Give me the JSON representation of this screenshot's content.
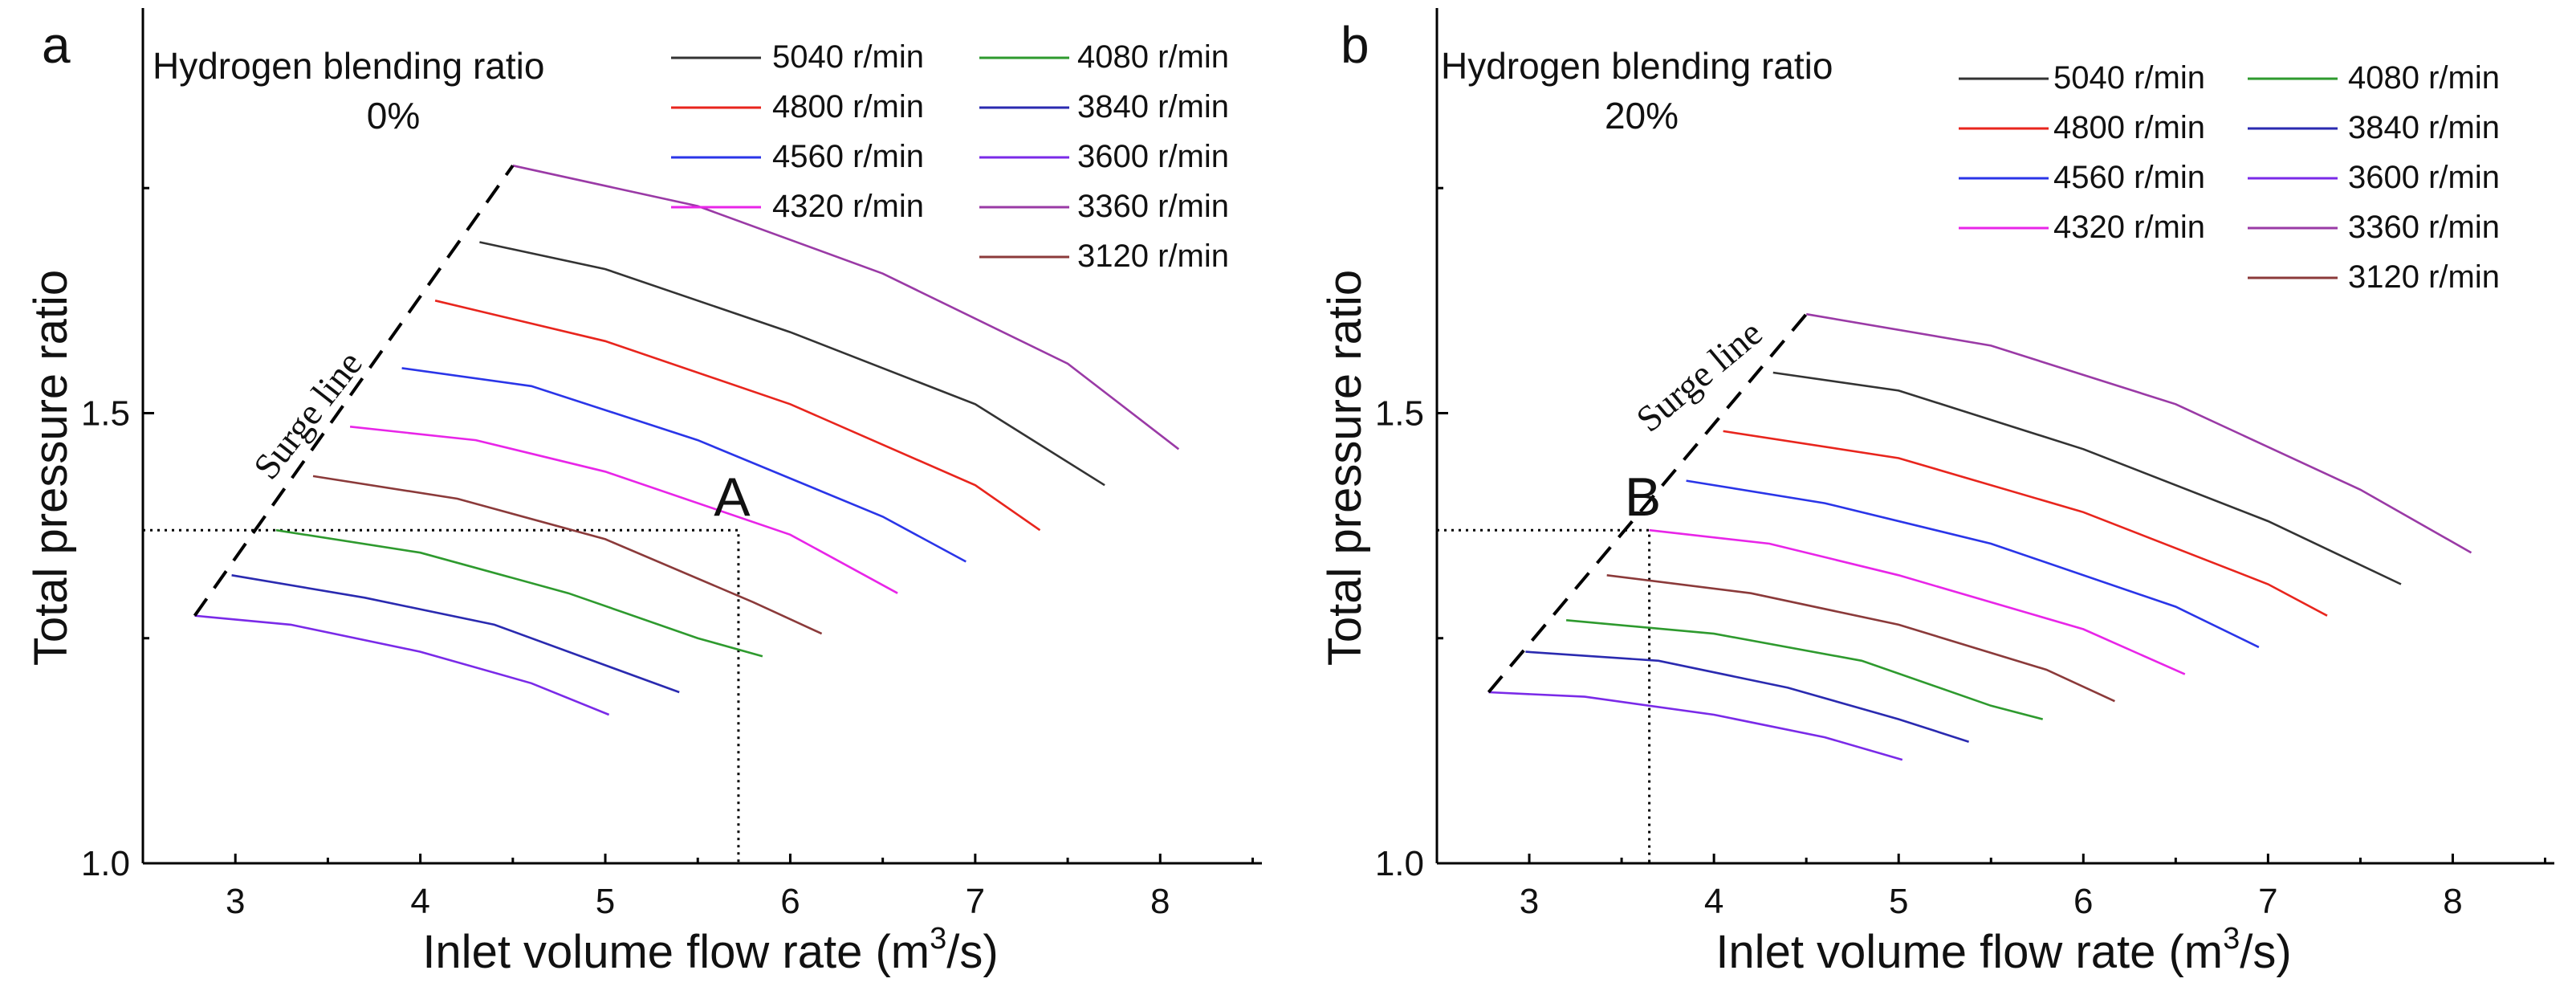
{
  "chart_data": [
    {
      "type": "line",
      "panel_label": "a",
      "title": "Hydrogen blending ratio",
      "subtitle": "0%",
      "xlabel": "Inlet volume flow rate (m",
      "xlabel_sup": "3",
      "xlabel_end": "/s)",
      "ylabel": "Total pressure ratio",
      "xlim": [
        2.5,
        8.55
      ],
      "ylim": [
        1.0,
        1.95
      ],
      "xticks": [
        "3",
        "4",
        "5",
        "6",
        "7",
        "8"
      ],
      "yticks": [
        "1.0",
        "1.5"
      ],
      "surge_label": "Surge line",
      "surge_line": {
        "x": [
          2.78,
          4.5
        ],
        "y": [
          1.275,
          1.775
        ]
      },
      "operating_point": {
        "label": "A",
        "x": 5.72,
        "y": 1.37
      },
      "series": [
        {
          "name": "5040 r/min",
          "color": "#333333",
          "x": [
            4.32,
            5.0,
            6.0,
            7.0,
            7.7
          ],
          "y": [
            1.69,
            1.66,
            1.59,
            1.51,
            1.42
          ]
        },
        {
          "name": "4800 r/min",
          "color": "#e8251d",
          "x": [
            4.08,
            5.0,
            6.0,
            7.0,
            7.35
          ],
          "y": [
            1.625,
            1.58,
            1.51,
            1.42,
            1.37
          ]
        },
        {
          "name": "4560 r/min",
          "color": "#2a35e8",
          "x": [
            3.9,
            4.6,
            5.5,
            6.5,
            6.95
          ],
          "y": [
            1.55,
            1.53,
            1.47,
            1.385,
            1.335
          ]
        },
        {
          "name": "4320 r/min",
          "color": "#e825e8",
          "x": [
            3.62,
            4.3,
            5.0,
            6.0,
            6.58
          ],
          "y": [
            1.485,
            1.47,
            1.435,
            1.365,
            1.3
          ]
        },
        {
          "name": "3360 r/min",
          "color": "#9a3aa6",
          "x": [
            4.5,
            5.5,
            6.5,
            7.5,
            8.1
          ],
          "y": [
            1.775,
            1.73,
            1.655,
            1.555,
            1.46
          ]
        },
        {
          "name": "3120 r/min",
          "color": "#8b3a3a",
          "x": [
            3.42,
            4.2,
            5.0,
            5.8,
            6.17
          ],
          "y": [
            1.43,
            1.405,
            1.36,
            1.29,
            1.255
          ]
        },
        {
          "name": "4080 r/min",
          "color": "#2e9a2e",
          "x": [
            3.22,
            4.0,
            4.8,
            5.5,
            5.85
          ],
          "y": [
            1.37,
            1.345,
            1.3,
            1.25,
            1.23
          ]
        },
        {
          "name": "3840 r/min",
          "color": "#2a2ab0",
          "x": [
            2.98,
            3.7,
            4.4,
            5.0,
            5.4
          ],
          "y": [
            1.32,
            1.295,
            1.265,
            1.22,
            1.19
          ]
        },
        {
          "name": "3600 r/min",
          "color": "#7a2ae8",
          "x": [
            2.78,
            3.3,
            4.0,
            4.6,
            5.02
          ],
          "y": [
            1.275,
            1.265,
            1.235,
            1.2,
            1.165
          ]
        }
      ],
      "legend_order": [
        "5040 r/min",
        "4080 r/min",
        "4800 r/min",
        "3840 r/min",
        "4560 r/min",
        "3600 r/min",
        "4320 r/min",
        "3360 r/min",
        "3120 r/min"
      ]
    },
    {
      "type": "line",
      "panel_label": "b",
      "title": "Hydrogen blending ratio",
      "subtitle": "20%",
      "xlabel": "Inlet volume flow rate (m",
      "xlabel_sup": "3",
      "xlabel_end": "/s)",
      "ylabel": "Total pressure ratio",
      "xlim": [
        2.5,
        8.55
      ],
      "ylim": [
        1.0,
        1.95
      ],
      "xticks": [
        "3",
        "4",
        "5",
        "6",
        "7",
        "8"
      ],
      "yticks": [
        "1.0",
        "1.5"
      ],
      "surge_label": "Surge line",
      "surge_line": {
        "x": [
          2.78,
          4.5
        ],
        "y": [
          1.19,
          1.61
        ]
      },
      "operating_point": {
        "label": "B",
        "x": 3.65,
        "y": 1.37
      },
      "series": [
        {
          "name": "5040 r/min",
          "color": "#333333",
          "x": [
            4.32,
            5.0,
            6.0,
            7.0,
            7.72
          ],
          "y": [
            1.545,
            1.525,
            1.46,
            1.38,
            1.31
          ]
        },
        {
          "name": "4800 r/min",
          "color": "#e8251d",
          "x": [
            4.05,
            5.0,
            6.0,
            7.0,
            7.32
          ],
          "y": [
            1.48,
            1.45,
            1.39,
            1.31,
            1.275
          ]
        },
        {
          "name": "4560 r/min",
          "color": "#2a35e8",
          "x": [
            3.85,
            4.6,
            5.5,
            6.5,
            6.95
          ],
          "y": [
            1.425,
            1.4,
            1.355,
            1.285,
            1.24
          ]
        },
        {
          "name": "4320 r/min",
          "color": "#e825e8",
          "x": [
            3.65,
            4.3,
            5.0,
            6.0,
            6.55
          ],
          "y": [
            1.37,
            1.355,
            1.32,
            1.26,
            1.21
          ]
        },
        {
          "name": "3360 r/min",
          "color": "#9a3aa6",
          "x": [
            4.5,
            5.5,
            6.5,
            7.5,
            8.1
          ],
          "y": [
            1.61,
            1.575,
            1.51,
            1.415,
            1.345
          ]
        },
        {
          "name": "3120 r/min",
          "color": "#8b3a3a",
          "x": [
            3.42,
            4.2,
            5.0,
            5.8,
            6.17
          ],
          "y": [
            1.32,
            1.3,
            1.265,
            1.215,
            1.18
          ]
        },
        {
          "name": "4080 r/min",
          "color": "#2e9a2e",
          "x": [
            3.2,
            4.0,
            4.8,
            5.5,
            5.78
          ],
          "y": [
            1.27,
            1.255,
            1.225,
            1.175,
            1.16
          ]
        },
        {
          "name": "3840 r/min",
          "color": "#2a2ab0",
          "x": [
            2.98,
            3.7,
            4.4,
            5.0,
            5.38
          ],
          "y": [
            1.235,
            1.225,
            1.195,
            1.16,
            1.135
          ]
        },
        {
          "name": "3600 r/min",
          "color": "#7a2ae8",
          "x": [
            2.78,
            3.3,
            4.0,
            4.6,
            5.02
          ],
          "y": [
            1.19,
            1.185,
            1.165,
            1.14,
            1.115
          ]
        }
      ],
      "legend_order": [
        "5040 r/min",
        "4080 r/min",
        "4800 r/min",
        "3840 r/min",
        "4560 r/min",
        "3600 r/min",
        "4320 r/min",
        "3360 r/min",
        "3120 r/min"
      ]
    }
  ]
}
